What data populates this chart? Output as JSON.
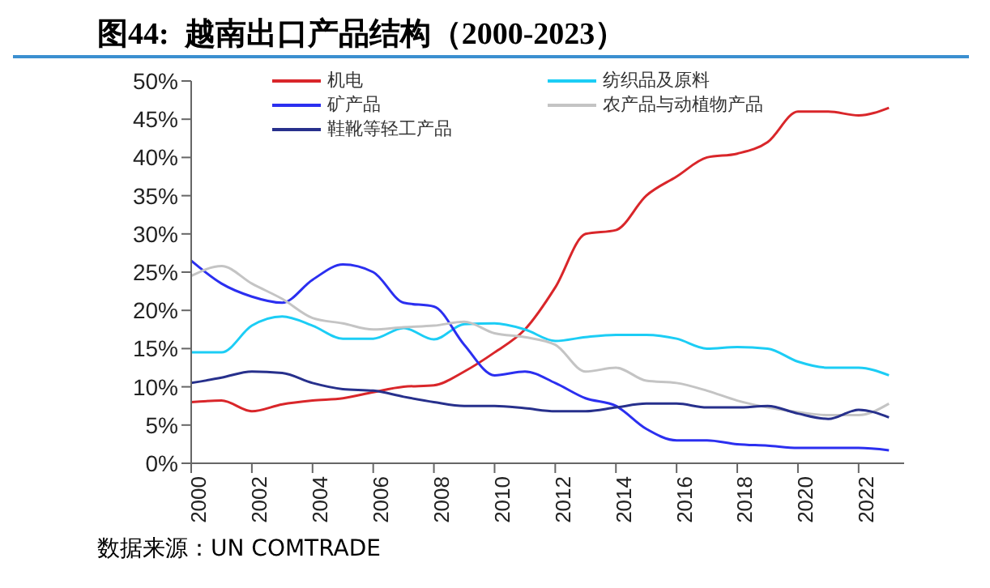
{
  "chart_data": {
    "type": "line",
    "title": "图44:  越南出口产品结构（2000-2023）",
    "annotations": [
      "数据来源：UN COMTRADE"
    ],
    "x": [
      2000,
      2001,
      2002,
      2003,
      2004,
      2005,
      2006,
      2007,
      2008,
      2009,
      2010,
      2011,
      2012,
      2013,
      2014,
      2015,
      2016,
      2017,
      2018,
      2019,
      2020,
      2021,
      2022,
      2023
    ],
    "series": [
      {
        "name": "机电",
        "color": "#d9262a",
        "values": [
          8,
          8.2,
          6.8,
          7.7,
          8.2,
          8.5,
          9.3,
          10,
          10.2,
          12,
          14.5,
          17.5,
          23,
          30,
          30.5,
          35,
          37.5,
          40,
          40.5,
          42,
          46,
          46,
          45.5,
          46.5
        ]
      },
      {
        "name": "纺织品及原料",
        "color": "#1ccdf5",
        "values": [
          14.5,
          14.5,
          18,
          19.2,
          18,
          16.3,
          16.3,
          17.7,
          16.2,
          18.2,
          18.3,
          17.5,
          16,
          16.5,
          16.8,
          16.8,
          16.3,
          15,
          15.2,
          15,
          13.3,
          12.5,
          12.5,
          11.5
        ]
      },
      {
        "name": "矿产品",
        "color": "#2b2ff0",
        "values": [
          26.5,
          23.5,
          21.8,
          21,
          24,
          26,
          25,
          21,
          20.5,
          15.5,
          11.5,
          12,
          10.5,
          8.5,
          7.5,
          4.5,
          3,
          3,
          2.5,
          2.3,
          2,
          2,
          2,
          1.7
        ]
      },
      {
        "name": "农产品与动植物产品",
        "color": "#c4c4c4",
        "values": [
          24.5,
          25.8,
          23.5,
          21.5,
          19,
          18.3,
          17.5,
          17.8,
          18,
          18.5,
          17,
          16.5,
          15.5,
          12,
          12.5,
          10.8,
          10.5,
          9.5,
          8.2,
          7.3,
          6.7,
          6.3,
          6.3,
          7.8
        ]
      },
      {
        "name": "鞋靴等轻工产品",
        "color": "#27308c",
        "values": [
          10.5,
          11.2,
          12,
          11.8,
          10.5,
          9.7,
          9.5,
          8.7,
          8,
          7.5,
          7.5,
          7.2,
          6.8,
          6.8,
          7.3,
          7.8,
          7.8,
          7.3,
          7.3,
          7.5,
          6.5,
          5.8,
          7,
          6
        ]
      }
    ],
    "xlim": [
      2000,
      2023.5
    ],
    "xticks": [
      2000,
      2002,
      2004,
      2006,
      2008,
      2010,
      2012,
      2014,
      2016,
      2018,
      2020,
      2022
    ],
    "ylim": [
      0,
      50
    ],
    "yticks": [
      {
        "value": 0,
        "label": "0%"
      },
      {
        "value": 5,
        "label": "5%"
      },
      {
        "value": 10,
        "label": "10%"
      },
      {
        "value": 15,
        "label": "15%"
      },
      {
        "value": 20,
        "label": "20%"
      },
      {
        "value": 25,
        "label": "25%"
      },
      {
        "value": 30,
        "label": "30%"
      },
      {
        "value": 35,
        "label": "35%"
      },
      {
        "value": 40,
        "label": "40%"
      },
      {
        "value": 45,
        "label": "45%"
      },
      {
        "value": 50,
        "label": "50%"
      }
    ],
    "grid": false,
    "legend": "top left",
    "marker": "none",
    "line_style": "solid"
  }
}
